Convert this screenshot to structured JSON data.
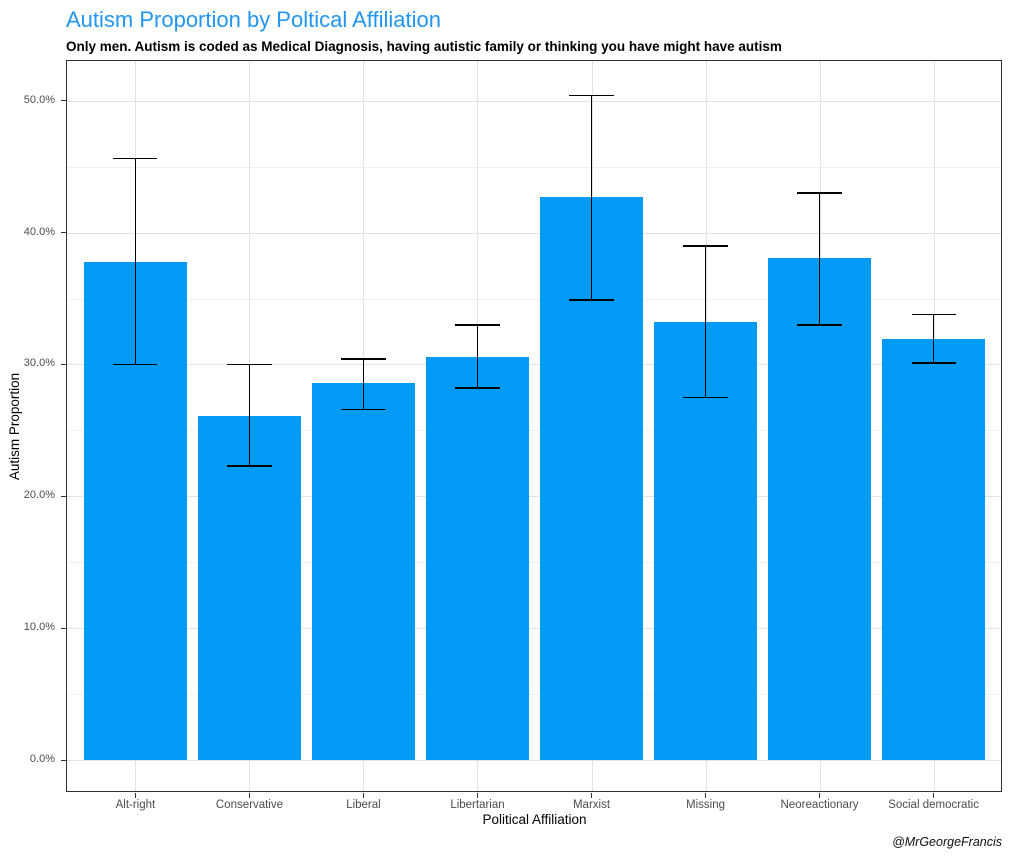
{
  "chart_data": {
    "type": "bar",
    "title": "Autism Proportion by Poltical Affiliation",
    "subtitle": "Only men. Autism is coded as Medical Diagnosis, having autistic family or thinking you have might have autism",
    "xlabel": "Political Affiliation",
    "ylabel": "Autism Proportion",
    "caption": "@MrGeorgeFrancis",
    "categories": [
      "Alt-right",
      "Conservative",
      "Liberal",
      "Libertarian",
      "Marxist",
      "Missing",
      "Neoreactionary",
      "Social democratic"
    ],
    "values": [
      37.8,
      26.1,
      28.6,
      30.6,
      42.7,
      33.2,
      38.1,
      31.9
    ],
    "error_low": [
      30.0,
      22.3,
      26.6,
      28.2,
      34.9,
      27.5,
      33.0,
      30.1
    ],
    "error_high": [
      45.6,
      30.0,
      30.4,
      33.0,
      50.4,
      39.0,
      43.0,
      33.8
    ],
    "y_ticks": [
      {
        "value": 0,
        "label": "0.0%"
      },
      {
        "value": 10,
        "label": "10.0%"
      },
      {
        "value": 20,
        "label": "20.0%"
      },
      {
        "value": 30,
        "label": "30.0%"
      },
      {
        "value": 40,
        "label": "40.0%"
      },
      {
        "value": 50,
        "label": "50.0%"
      }
    ],
    "y_minor_ticks": [
      5,
      15,
      25,
      35,
      45
    ],
    "ylim": [
      -2.4,
      53.0
    ],
    "grid": "on",
    "legend_position": "none",
    "colors": {
      "bar": "#019BF5",
      "title": "#2196F3",
      "grid_major": "#E2E2E2",
      "grid_minor": "#F1F1F1",
      "panel_border": "#333333",
      "axis_text": "#4D4D4D",
      "error_bar": "#000000"
    }
  }
}
